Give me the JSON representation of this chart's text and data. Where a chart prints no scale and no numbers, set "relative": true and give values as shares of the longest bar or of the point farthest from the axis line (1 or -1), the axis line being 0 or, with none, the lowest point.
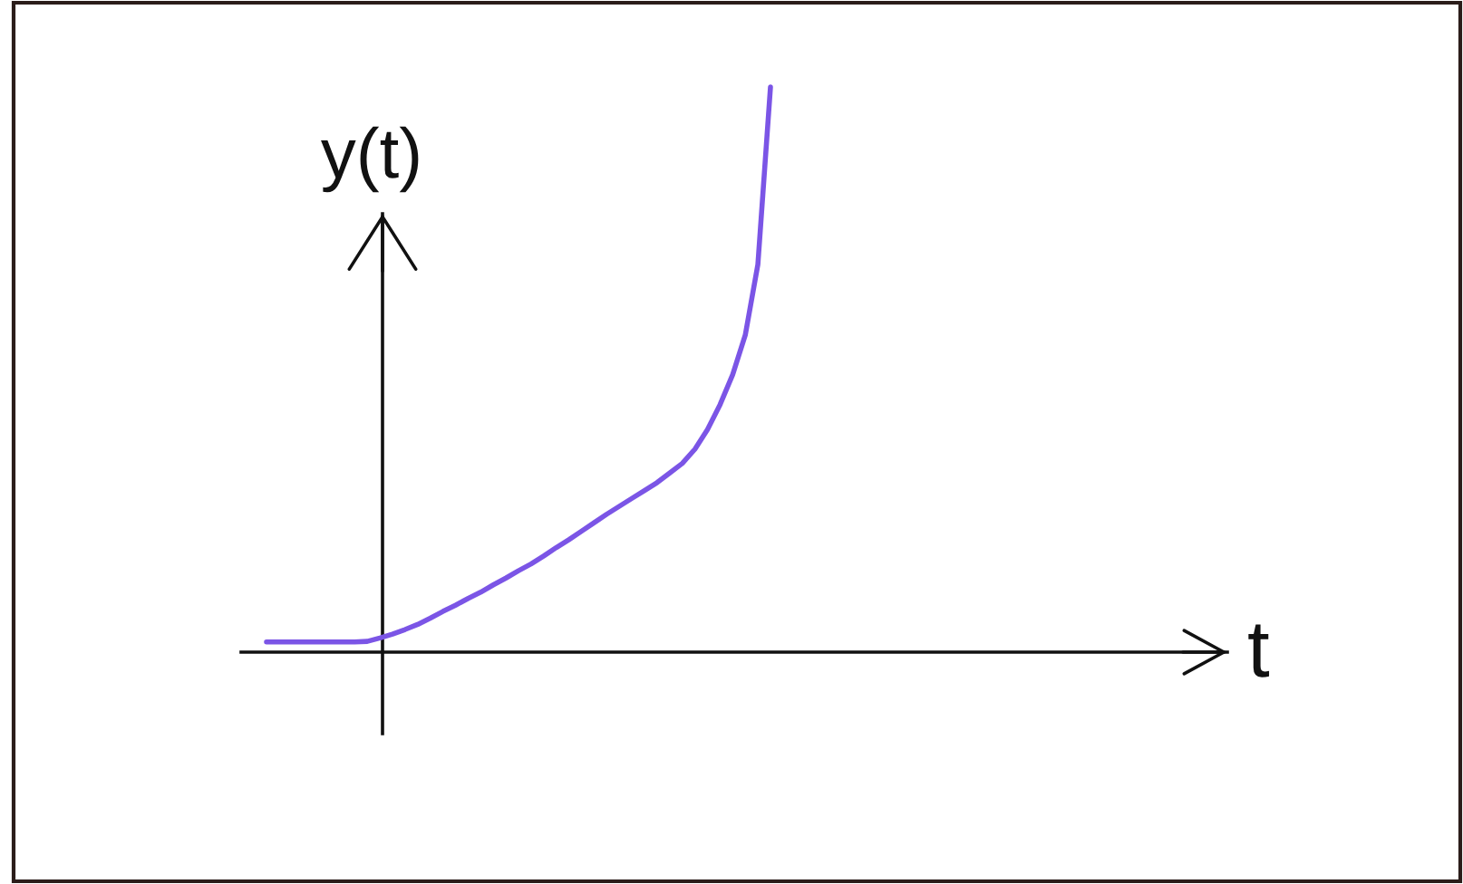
{
  "chart_data": {
    "type": "line",
    "ylabel": "y(t)",
    "annotations": [
      "t"
    ],
    "relative": true,
    "categories": [
      null,
      null,
      null,
      null,
      null,
      null,
      null,
      null,
      null,
      null,
      null,
      null,
      null,
      null,
      null,
      null,
      null,
      null,
      null,
      null,
      null,
      null,
      null,
      null,
      null,
      null,
      null,
      null,
      null,
      null,
      null,
      null,
      null,
      null,
      null,
      null,
      null,
      null,
      null,
      null,
      null
    ],
    "series": [
      {
        "color": "#7b55e6",
        "values": [
          0.018,
          0.018,
          0.018,
          0.018,
          0.018,
          0.018,
          0.018,
          0.018,
          0.019,
          0.025,
          0.032,
          0.04,
          0.049,
          0.06,
          0.072,
          0.083,
          0.095,
          0.106,
          0.119,
          0.131,
          0.144,
          0.156,
          0.17,
          0.185,
          0.199,
          0.214,
          0.229,
          0.244,
          0.258,
          0.272,
          0.286,
          0.3,
          0.317,
          0.334,
          0.359,
          0.394,
          0.438,
          0.491,
          0.561,
          0.686,
          1.0
        ]
      }
    ]
  }
}
